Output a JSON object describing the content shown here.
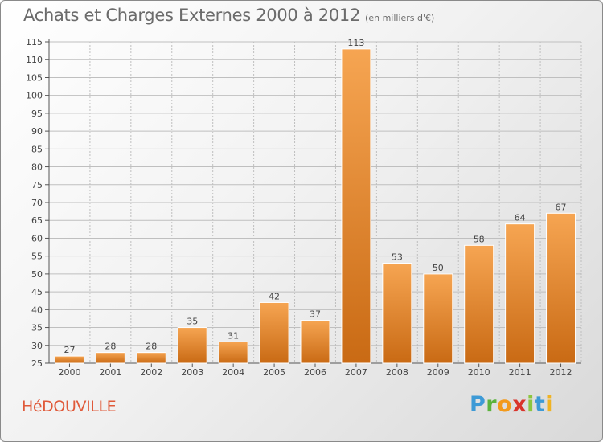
{
  "title": "Achats et Charges Externes 2000 à 2012",
  "unit": "(en milliers d'€)",
  "commune": "HéDOUVILLE",
  "logo": {
    "letters": [
      "P",
      "r",
      "o",
      "x",
      "i",
      "t",
      "i"
    ]
  },
  "colors": {
    "bar_top": "#f6a552",
    "bar_bottom": "#c96a14",
    "grid": "#bfbfbf",
    "text": "#444444"
  },
  "chart_data": {
    "type": "bar",
    "title": "Achats et Charges Externes 2000 à 2012",
    "subtitle": "(en milliers d'€)",
    "xlabel": "",
    "ylabel": "",
    "ylim": [
      25,
      115
    ],
    "yticks": [
      25,
      30,
      35,
      40,
      45,
      50,
      55,
      60,
      65,
      70,
      75,
      80,
      85,
      90,
      95,
      100,
      105,
      110,
      115
    ],
    "grid": true,
    "categories": [
      "2000",
      "2001",
      "2002",
      "2003",
      "2004",
      "2005",
      "2006",
      "2007",
      "2008",
      "2009",
      "2010",
      "2011",
      "2012"
    ],
    "values": [
      27,
      28,
      28,
      35,
      31,
      42,
      37,
      113,
      53,
      50,
      58,
      64,
      67
    ]
  }
}
